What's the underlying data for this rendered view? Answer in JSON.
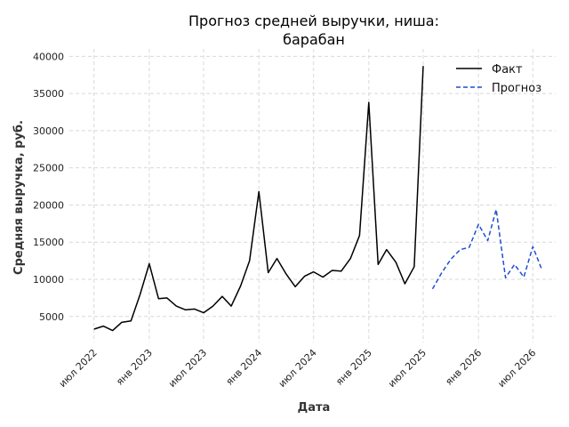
{
  "chart_data": {
    "type": "line",
    "title_lines": [
      "Прогноз средней выручки, ниша:",
      "барабан"
    ],
    "xlabel": "Дата",
    "ylabel": "Средняя выручка, руб.",
    "ylim": [
      1500,
      41000
    ],
    "xlim": [
      "2022-04-10",
      "2026-09-15"
    ],
    "yticks": [
      5000,
      10000,
      15000,
      20000,
      25000,
      30000,
      35000,
      40000
    ],
    "ytick_labels": [
      "5000",
      "10000",
      "15000",
      "20000",
      "25000",
      "30000",
      "35000",
      "40000"
    ],
    "xticks": [
      {
        "date": "2022-07-01",
        "label": "июл 2022"
      },
      {
        "date": "2023-01-01",
        "label": "янв 2023"
      },
      {
        "date": "2023-07-01",
        "label": "июл 2023"
      },
      {
        "date": "2024-01-01",
        "label": "янв 2024"
      },
      {
        "date": "2024-07-01",
        "label": "июл 2024"
      },
      {
        "date": "2025-01-01",
        "label": "янв 2025"
      },
      {
        "date": "2025-07-01",
        "label": "июл 2025"
      },
      {
        "date": "2026-01-01",
        "label": "янв 2026"
      },
      {
        "date": "2026-07-01",
        "label": "июл 2026"
      }
    ],
    "grid": true,
    "legend_position": "top-right",
    "series": [
      {
        "name": "Факт",
        "color": "#000000",
        "style": "solid",
        "points": [
          [
            "2022-07-01",
            3300
          ],
          [
            "2022-08-01",
            3700
          ],
          [
            "2022-09-01",
            3100
          ],
          [
            "2022-10-01",
            4200
          ],
          [
            "2022-11-01",
            4400
          ],
          [
            "2022-12-01",
            7900
          ],
          [
            "2023-01-01",
            12100
          ],
          [
            "2023-02-01",
            7400
          ],
          [
            "2023-03-01",
            7500
          ],
          [
            "2023-04-01",
            6400
          ],
          [
            "2023-05-01",
            5900
          ],
          [
            "2023-06-01",
            6000
          ],
          [
            "2023-07-01",
            5500
          ],
          [
            "2023-08-01",
            6400
          ],
          [
            "2023-09-01",
            7700
          ],
          [
            "2023-10-01",
            6400
          ],
          [
            "2023-11-01",
            9100
          ],
          [
            "2023-12-01",
            12500
          ],
          [
            "2024-01-01",
            21800
          ],
          [
            "2024-02-01",
            10900
          ],
          [
            "2024-03-01",
            12800
          ],
          [
            "2024-04-01",
            10700
          ],
          [
            "2024-05-01",
            9000
          ],
          [
            "2024-06-01",
            10400
          ],
          [
            "2024-07-01",
            11000
          ],
          [
            "2024-08-01",
            10300
          ],
          [
            "2024-09-01",
            11200
          ],
          [
            "2024-10-01",
            11100
          ],
          [
            "2024-11-01",
            12800
          ],
          [
            "2024-12-01",
            15900
          ],
          [
            "2025-01-01",
            33800
          ],
          [
            "2025-02-01",
            12000
          ],
          [
            "2025-03-01",
            14000
          ],
          [
            "2025-04-01",
            12300
          ],
          [
            "2025-05-01",
            9400
          ],
          [
            "2025-06-01",
            11700
          ],
          [
            "2025-07-01",
            38700
          ]
        ]
      },
      {
        "name": "Прогноз",
        "color": "#1f4fd1",
        "style": "dashed",
        "points": [
          [
            "2025-08-01",
            8700
          ],
          [
            "2025-09-01",
            10900
          ],
          [
            "2025-10-01",
            12700
          ],
          [
            "2025-11-01",
            14000
          ],
          [
            "2025-12-01",
            14300
          ],
          [
            "2026-01-01",
            17400
          ],
          [
            "2026-02-01",
            15200
          ],
          [
            "2026-03-01",
            19400
          ],
          [
            "2026-04-01",
            10200
          ],
          [
            "2026-05-01",
            12000
          ],
          [
            "2026-06-01",
            10300
          ],
          [
            "2026-07-01",
            14400
          ],
          [
            "2026-08-01",
            11200
          ]
        ]
      }
    ]
  }
}
